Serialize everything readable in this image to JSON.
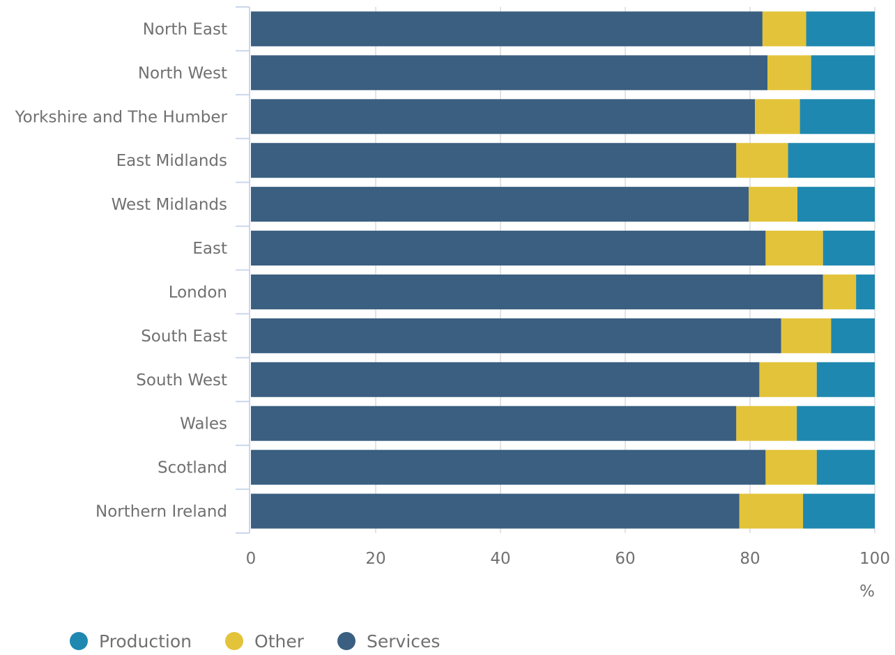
{
  "chart_data": {
    "type": "bar",
    "orientation": "horizontal",
    "stacked": true,
    "categories": [
      "North East",
      "North West",
      "Yorkshire and The Humber",
      "East Midlands",
      "West Midlands",
      "East",
      "London",
      "South East",
      "South West",
      "Wales",
      "Scotland",
      "Northern Ireland"
    ],
    "series": [
      {
        "name": "Services",
        "color": "#3a5f80",
        "values": [
          82.0,
          82.8,
          80.8,
          77.8,
          79.8,
          82.5,
          91.7,
          85.0,
          81.5,
          77.8,
          82.5,
          78.3
        ]
      },
      {
        "name": "Other",
        "color": "#e3c33a",
        "values": [
          7.0,
          7.0,
          7.2,
          8.3,
          7.8,
          9.2,
          5.3,
          8.0,
          9.2,
          9.7,
          8.2,
          10.2
        ]
      },
      {
        "name": "Production",
        "color": "#1f88b0",
        "values": [
          11.0,
          10.2,
          12.0,
          13.9,
          12.4,
          8.3,
          3.0,
          7.0,
          9.3,
          12.5,
          9.3,
          11.5
        ]
      }
    ],
    "x_ticks": [
      "0",
      "20",
      "40",
      "60",
      "80",
      "100"
    ],
    "xlim": [
      0,
      100
    ],
    "xunit": "%",
    "grid": true,
    "legend_position": "bottom-left",
    "legend_order": [
      "Production",
      "Other",
      "Services"
    ]
  }
}
